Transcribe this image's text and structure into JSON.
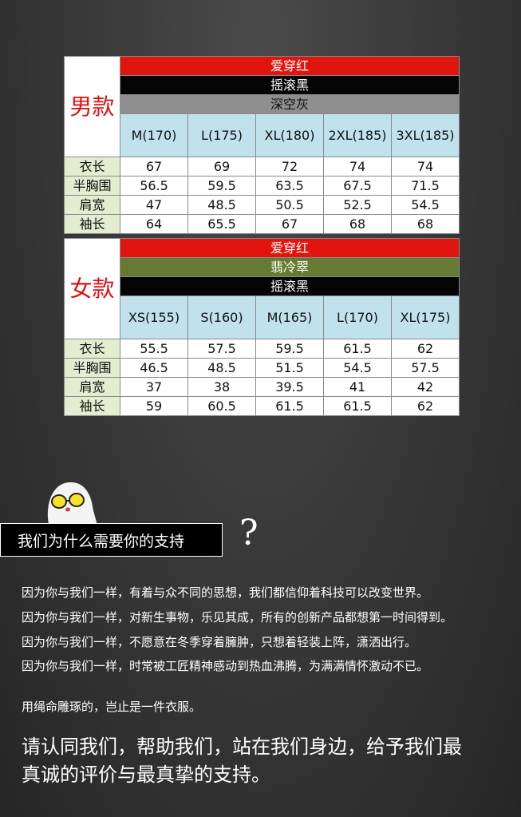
{
  "men": {
    "title": "男款",
    "colors": [
      "爱穿红",
      "摇滚黑",
      "深空灰"
    ],
    "sizes": [
      "M(170)",
      "L(175)",
      "XL(180)",
      "2XL(185)",
      "3XL(185)"
    ],
    "rows": [
      {
        "label": "衣长",
        "values": [
          "67",
          "69",
          "72",
          "74",
          "74"
        ]
      },
      {
        "label": "半胸围",
        "values": [
          "56.5",
          "59.5",
          "63.5",
          "67.5",
          "71.5"
        ]
      },
      {
        "label": "肩宽",
        "values": [
          "47",
          "48.5",
          "50.5",
          "52.5",
          "54.5"
        ]
      },
      {
        "label": "袖长",
        "values": [
          "64",
          "65.5",
          "67",
          "68",
          "68"
        ]
      }
    ]
  },
  "women": {
    "title": "女款",
    "colors": [
      "爱穿红",
      "翡冷翠",
      "摇滚黑"
    ],
    "sizes": [
      "XS(155)",
      "S(160)",
      "M(165)",
      "L(170)",
      "XL(175)"
    ],
    "rows": [
      {
        "label": "衣长",
        "values": [
          "55.5",
          "57.5",
          "59.5",
          "61.5",
          "62"
        ]
      },
      {
        "label": "半胸围",
        "values": [
          "46.5",
          "48.5",
          "51.5",
          "54.5",
          "57.5"
        ]
      },
      {
        "label": "肩宽",
        "values": [
          "37",
          "38",
          "39.5",
          "41",
          "42"
        ]
      },
      {
        "label": "袖长",
        "values": [
          "59",
          "60.5",
          "61.5",
          "61.5",
          "62"
        ]
      }
    ]
  },
  "banner": {
    "text": "我们为什么需要你的支持",
    "mark": "?"
  },
  "paragraphs": [
    "因为你与我们一样，有着与众不同的思想，我们都信仰着科技可以改变世界。",
    "因为你与我们一样，对新生事物，乐见其成，所有的创新产品都想第一时间得到。",
    "因为你与我们一样，不愿意在冬季穿着臃肿，只想着轻装上阵，潇洒出行。",
    "因为你与我们一样，时常被工匠精神感动到热血沸腾，为满满情怀激动不已。"
  ],
  "note": "用绳命雕琢的，岂止是一件衣服。",
  "appeal": [
    "请认同我们，帮助我们，站在我们身边，给予我们最",
    "真诚的评价与最真挚的支持。"
  ]
}
